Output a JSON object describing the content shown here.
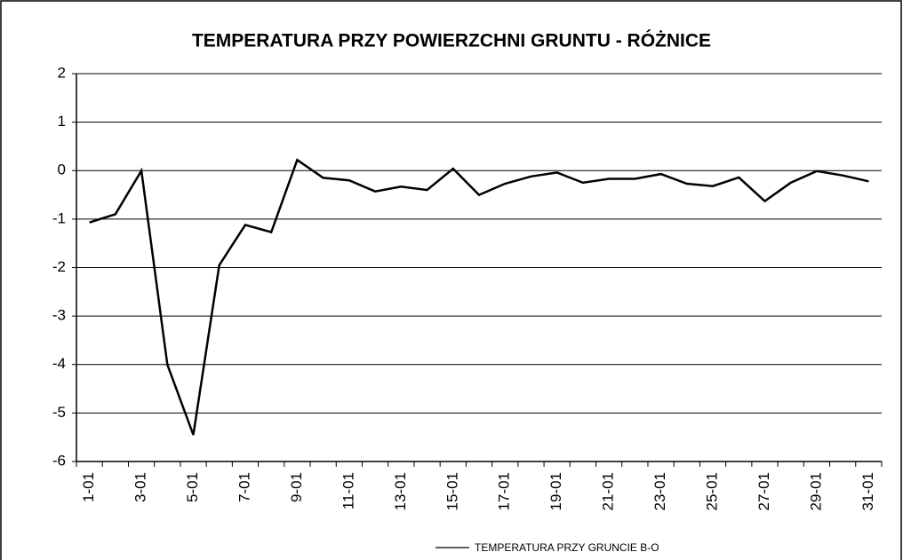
{
  "chart_data": {
    "type": "line",
    "title": "TEMPERATURA PRZY POWIERZCHNI GRUNTU - RÓŻNICE",
    "categories": [
      "1-01",
      null,
      "3-01",
      null,
      "5-01",
      null,
      "7-01",
      null,
      "9-01",
      null,
      "11-01",
      null,
      "13-01",
      null,
      "15-01",
      null,
      "17-01",
      null,
      "19-01",
      null,
      "21-01",
      null,
      "23-01",
      null,
      "25-01",
      null,
      "27-01",
      null,
      "29-01",
      null,
      "31-01"
    ],
    "series": [
      {
        "name": "TEMPERATURA PRZY GRUNCIE B-O",
        "color": "#000000",
        "values": [
          -1.07,
          -0.9,
          0,
          -4,
          -5.45,
          -1.95,
          -1.12,
          -1.27,
          0.22,
          -0.15,
          -0.2,
          -0.43,
          -0.33,
          -0.4,
          0.04,
          -0.5,
          -0.27,
          -0.12,
          -0.04,
          -0.25,
          -0.17,
          -0.17,
          -0.07,
          -0.27,
          -0.32,
          -0.14,
          -0.63,
          -0.25,
          -0.01,
          -0.1,
          -0.22
        ]
      }
    ],
    "ylim": [
      -6,
      2
    ],
    "yticks": [
      -6,
      -5,
      -4,
      -3,
      -2,
      -1,
      0,
      1,
      2
    ],
    "grid": true,
    "legend": "bottom"
  }
}
